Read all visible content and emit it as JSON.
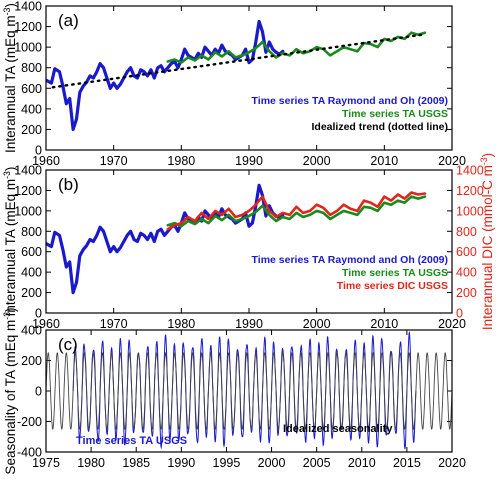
{
  "chart_data": [
    {
      "panel_label": "(a)",
      "type": "line",
      "xlim": [
        1960,
        2020
      ],
      "ylim": [
        0,
        1400
      ],
      "x_ticks": [
        1960,
        1970,
        1980,
        1990,
        2000,
        2010,
        2020
      ],
      "y_ticks": [
        0,
        200,
        400,
        600,
        800,
        1000,
        1200,
        1400
      ],
      "ylabel": "Interannual TA (mEq m⁻³)",
      "grid": false,
      "legend": "bottom-right",
      "series": [
        {
          "name": "Time series TA Raymond and Oh (2009)",
          "color": "#1a1acc",
          "x": [
            1960,
            1960.8,
            1961.3,
            1962,
            1962.5,
            1963,
            1963.5,
            1964,
            1964.5,
            1965,
            1965.5,
            1966,
            1966.5,
            1967,
            1967.5,
            1968,
            1968.5,
            1969,
            1969.5,
            1970,
            1970.5,
            1971,
            1971.5,
            1972,
            1972.5,
            1973,
            1973.5,
            1974,
            1974.5,
            1975,
            1975.5,
            1976,
            1976.5,
            1977,
            1977.5,
            1978,
            1978.5,
            1979,
            1979.5,
            1980,
            1980.5,
            1981,
            1981.5,
            1982,
            1982.5,
            1983,
            1983.5,
            1984,
            1984.5,
            1985,
            1985.5,
            1986,
            1986.5,
            1987,
            1987.5,
            1988,
            1988.5,
            1989,
            1989.5,
            1990,
            1990.5,
            1991,
            1991.5,
            1992,
            1992.5,
            1993,
            1993.5,
            1994,
            1994.5,
            1995
          ],
          "values": [
            680,
            650,
            790,
            760,
            620,
            450,
            500,
            200,
            300,
            560,
            620,
            660,
            720,
            700,
            760,
            840,
            800,
            700,
            600,
            650,
            600,
            640,
            700,
            760,
            800,
            720,
            700,
            780,
            760,
            720,
            780,
            700,
            800,
            820,
            760,
            800,
            840,
            860,
            800,
            880,
            980,
            920,
            900,
            880,
            940,
            900,
            1000,
            960,
            920,
            980,
            940,
            1020,
            960,
            940,
            920,
            880,
            900,
            920,
            980,
            850,
            880,
            1050,
            1250,
            1150,
            950,
            1050,
            980,
            950,
            930,
            960
          ]
        },
        {
          "name": "Time series TA USGS",
          "color": "#1a8a1a",
          "x": [
            1978,
            1979,
            1980,
            1981,
            1982,
            1983,
            1984,
            1985,
            1986,
            1987,
            1988,
            1989,
            1990,
            1991,
            1992,
            1993,
            1994,
            1995,
            1996,
            1997,
            1998,
            1999,
            2000,
            2001,
            2002,
            2003,
            2004,
            2005,
            2006,
            2007,
            2008,
            2009,
            2010,
            2011,
            2012,
            2013,
            2014,
            2015,
            2016
          ],
          "values": [
            860,
            880,
            850,
            900,
            870,
            920,
            880,
            950,
            910,
            960,
            900,
            920,
            950,
            990,
            1050,
            960,
            900,
            940,
            920,
            980,
            940,
            960,
            1000,
            980,
            920,
            960,
            1000,
            980,
            960,
            1040,
            1030,
            1000,
            1080,
            1060,
            1100,
            1080,
            1140,
            1120,
            1140
          ]
        },
        {
          "name": "Idealized trend (dotted line)",
          "color": "#000000",
          "x": [
            1961,
            2016
          ],
          "values": [
            610,
            1125
          ]
        }
      ]
    },
    {
      "panel_label": "(b)",
      "type": "line",
      "xlim": [
        1960,
        2020
      ],
      "ylim": [
        0,
        1400
      ],
      "y2lim": [
        0,
        1400
      ],
      "x_ticks": [
        1960,
        1970,
        1980,
        1990,
        2000,
        2010,
        2020
      ],
      "y_ticks": [
        0,
        200,
        400,
        600,
        800,
        1000,
        1200,
        1400
      ],
      "y2_ticks": [
        0,
        200,
        400,
        600,
        800,
        1000,
        1200,
        1400
      ],
      "ylabel": "Interannual TA (mEq m⁻³)",
      "y2label": "Interannual DIC (mmol-C m⁻³)",
      "grid": false,
      "legend": "bottom-right",
      "series": [
        {
          "name": "Time series TA Raymond and Oh (2009)",
          "color": "#1a1acc",
          "x": [
            1960,
            1960.8,
            1961.3,
            1962,
            1962.5,
            1963,
            1963.5,
            1964,
            1964.5,
            1965,
            1965.5,
            1966,
            1966.5,
            1967,
            1967.5,
            1968,
            1968.5,
            1969,
            1969.5,
            1970,
            1970.5,
            1971,
            1971.5,
            1972,
            1972.5,
            1973,
            1973.5,
            1974,
            1974.5,
            1975,
            1975.5,
            1976,
            1976.5,
            1977,
            1977.5,
            1978,
            1978.5,
            1979,
            1979.5,
            1980,
            1980.5,
            1981,
            1981.5,
            1982,
            1982.5,
            1983,
            1983.5,
            1984,
            1984.5,
            1985,
            1985.5,
            1986,
            1986.5,
            1987,
            1987.5,
            1988,
            1988.5,
            1989,
            1989.5,
            1990,
            1990.5,
            1991,
            1991.5,
            1992,
            1992.5,
            1993,
            1993.5,
            1994,
            1994.5,
            1995
          ],
          "values": [
            680,
            650,
            790,
            760,
            620,
            450,
            500,
            200,
            300,
            560,
            620,
            660,
            720,
            700,
            760,
            840,
            800,
            700,
            600,
            650,
            600,
            640,
            700,
            760,
            800,
            720,
            700,
            780,
            760,
            720,
            780,
            700,
            800,
            820,
            760,
            800,
            840,
            860,
            800,
            880,
            980,
            920,
            900,
            880,
            940,
            900,
            1000,
            960,
            920,
            980,
            940,
            1020,
            960,
            940,
            920,
            880,
            900,
            920,
            980,
            850,
            880,
            1050,
            1250,
            1150,
            950,
            1050,
            980,
            950,
            930,
            960
          ]
        },
        {
          "name": "Time series TA USGS",
          "color": "#1a8a1a",
          "x": [
            1978,
            1979,
            1980,
            1981,
            1982,
            1983,
            1984,
            1985,
            1986,
            1987,
            1988,
            1989,
            1990,
            1991,
            1992,
            1993,
            1994,
            1995,
            1996,
            1997,
            1998,
            1999,
            2000,
            2001,
            2002,
            2003,
            2004,
            2005,
            2006,
            2007,
            2008,
            2009,
            2010,
            2011,
            2012,
            2013,
            2014,
            2015,
            2016
          ],
          "values": [
            860,
            880,
            850,
            900,
            870,
            920,
            880,
            950,
            910,
            960,
            900,
            920,
            950,
            990,
            1050,
            960,
            900,
            940,
            920,
            980,
            940,
            960,
            1000,
            980,
            920,
            960,
            1000,
            980,
            960,
            1040,
            1030,
            1000,
            1080,
            1060,
            1100,
            1080,
            1140,
            1120,
            1140
          ]
        },
        {
          "name": "Time series DIC USGS",
          "color": "#e0261a",
          "axis": "right",
          "x": [
            1978,
            1979,
            1980,
            1981,
            1982,
            1983,
            1984,
            1985,
            1986,
            1987,
            1988,
            1989,
            1990,
            1991,
            1992,
            1993,
            1994,
            1995,
            1996,
            1997,
            1998,
            1999,
            2000,
            2001,
            2002,
            2003,
            2004,
            2005,
            2006,
            2007,
            2008,
            2009,
            2010,
            2011,
            2012,
            2013,
            2014,
            2015,
            2016
          ],
          "values": [
            820,
            860,
            880,
            940,
            900,
            980,
            920,
            1000,
            960,
            1020,
            940,
            960,
            1000,
            1060,
            1140,
            1000,
            940,
            980,
            960,
            1040,
            980,
            1000,
            1060,
            1030,
            960,
            1000,
            1060,
            1020,
            1000,
            1100,
            1080,
            1040,
            1140,
            1100,
            1160,
            1120,
            1180,
            1160,
            1170
          ]
        }
      ]
    },
    {
      "panel_label": "(c)",
      "type": "line",
      "xlim": [
        1975,
        2020
      ],
      "ylim": [
        -400,
        400
      ],
      "x_ticks": [
        1975,
        1980,
        1985,
        1990,
        1995,
        2000,
        2005,
        2010,
        2015,
        2020
      ],
      "y_ticks": [
        -400,
        -200,
        0,
        200,
        400
      ],
      "ylabel": "Seasonality of TA (mEq m⁻³)",
      "grid": false,
      "legend": "bottom",
      "series": [
        {
          "name": "Time series TA USGS",
          "color": "#1a1acc",
          "period_years": 1,
          "x_range": [
            1978,
            2016
          ],
          "amplitude_by_year": {
            "x": [
              1978,
              1979,
              1980,
              1981,
              1982,
              1983,
              1984,
              1985,
              1986,
              1987,
              1988,
              1989,
              1990,
              1991,
              1992,
              1993,
              1994,
              1995,
              1996,
              1997,
              1998,
              1999,
              2000,
              2001,
              2002,
              2003,
              2004,
              2005,
              2006,
              2007,
              2008,
              2009,
              2010,
              2011,
              2012,
              2013,
              2014,
              2015,
              2016
            ],
            "values": [
              250,
              330,
              280,
              360,
              240,
              300,
              340,
              260,
              320,
              290,
              350,
              270,
              330,
              300,
              380,
              260,
              310,
              340,
              280,
              360,
              250,
              320,
              300,
              270,
              340,
              290,
              330,
              260,
              350,
              300,
              280,
              340,
              270,
              320,
              360,
              290,
              310,
              380,
              280
            ]
          }
        },
        {
          "name": "Idealized seasonality",
          "color": "#444444",
          "period_years": 1,
          "amplitude": 250,
          "x_range": [
            1975,
            2020
          ]
        }
      ]
    }
  ],
  "labels": {
    "a_legend_1": "Time series TA Raymond and Oh (2009)",
    "a_legend_2": "Time series TA USGS",
    "a_legend_3": "Idealized trend (dotted line)",
    "b_legend_1": "Time series TA Raymond and Oh (2009)",
    "b_legend_2": "Time series TA USGS",
    "b_legend_3": "Time series DIC USGS",
    "c_legend_1": "Time series TA USGS",
    "c_legend_2": "Idealized seasonality"
  }
}
